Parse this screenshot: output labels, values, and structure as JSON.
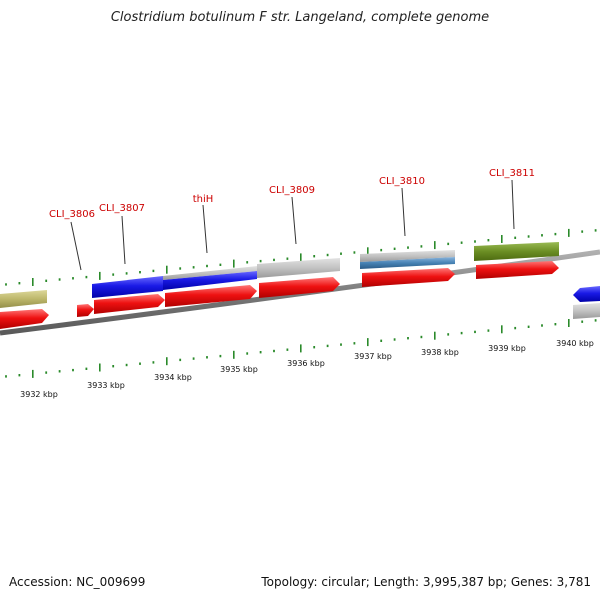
{
  "title": "Clostridium botulinum F str. Langeland, complete genome",
  "footer": {
    "accession": "Accession: NC_009699",
    "summary": "Topology: circular; Length: 3,995,387 bp; Genes: 3,781"
  },
  "colors": {
    "backbone": "#8a8a8a",
    "tick": "#2a8a2a",
    "gene_label": "#cc0000",
    "red_gene": "#ee1111",
    "blue_gene": "#1a1ae6",
    "gray_gene": "#c2c2c2",
    "olive_gene": "#6b8e23",
    "khaki_gene": "#bdb76b",
    "steel_gene": "#4682b4"
  },
  "axis": {
    "unit": "kbp",
    "tick_labels": [
      "3932 kbp",
      "3933 kbp",
      "3934 kbp",
      "3935 kbp",
      "3936 kbp",
      "3937 kbp",
      "3938 kbp",
      "3939 kbp",
      "3940 kbp"
    ]
  },
  "gene_labels": [
    "CLI_3806",
    "CLI_3807",
    "thiH",
    "CLI_3809",
    "CLI_3810",
    "CLI_3811"
  ]
}
